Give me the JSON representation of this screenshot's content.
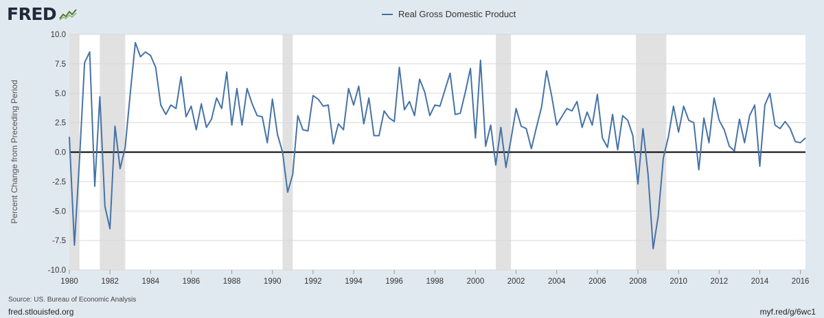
{
  "header": {
    "logo_text": "FRED",
    "logo_icon": "line-chart-icon"
  },
  "colors": {
    "series": "#4572a7",
    "recession": "#e1e1e1",
    "zero_line": "#000000",
    "grid": "#d8d8d8",
    "page_bg": "#e1e9f0",
    "plot_bg": "#ffffff"
  },
  "footer": {
    "source": "Source: US. Bureau of Economic Analysis",
    "site": "fred.stlouisfed.org",
    "short_link": "myf.red/g/6wc1"
  },
  "chart_data": {
    "type": "line",
    "title": "",
    "xlabel": "",
    "ylabel": "Percent Change from Preceding Period",
    "ylim": [
      -10,
      10
    ],
    "xlim": [
      1980,
      2016.25
    ],
    "y_ticks": [
      "10.0",
      "7.5",
      "5.0",
      "2.5",
      "0.0",
      "-2.5",
      "-5.0",
      "-7.5",
      "-10.0"
    ],
    "x_ticks": [
      "1980",
      "1982",
      "1984",
      "1986",
      "1988",
      "1990",
      "1992",
      "1994",
      "1996",
      "1998",
      "2000",
      "2002",
      "2004",
      "2006",
      "2008",
      "2010",
      "2012",
      "2014",
      "2016"
    ],
    "grid": true,
    "legend_position": "top",
    "zero_line": true,
    "recessions": [
      [
        1980.0,
        1980.5
      ],
      [
        1981.5,
        1982.75
      ],
      [
        1990.5,
        1991.0
      ],
      [
        2001.0,
        2001.75
      ],
      [
        2007.9,
        2009.4
      ]
    ],
    "series": [
      {
        "name": "Real Gross Domestic Product",
        "x": [
          1980.0,
          1980.25,
          1980.5,
          1980.75,
          1981.0,
          1981.25,
          1981.5,
          1981.75,
          1982.0,
          1982.25,
          1982.5,
          1982.75,
          1983.0,
          1983.25,
          1983.5,
          1983.75,
          1984.0,
          1984.25,
          1984.5,
          1984.75,
          1985.0,
          1985.25,
          1985.5,
          1985.75,
          1986.0,
          1986.25,
          1986.5,
          1986.75,
          1987.0,
          1987.25,
          1987.5,
          1987.75,
          1988.0,
          1988.25,
          1988.5,
          1988.75,
          1989.0,
          1989.25,
          1989.5,
          1989.75,
          1990.0,
          1990.25,
          1990.5,
          1990.75,
          1991.0,
          1991.25,
          1991.5,
          1991.75,
          1992.0,
          1992.25,
          1992.5,
          1992.75,
          1993.0,
          1993.25,
          1993.5,
          1993.75,
          1994.0,
          1994.25,
          1994.5,
          1994.75,
          1995.0,
          1995.25,
          1995.5,
          1995.75,
          1996.0,
          1996.25,
          1996.5,
          1996.75,
          1997.0,
          1997.25,
          1997.5,
          1997.75,
          1998.0,
          1998.25,
          1998.5,
          1998.75,
          1999.0,
          1999.25,
          1999.5,
          1999.75,
          2000.0,
          2000.25,
          2000.5,
          2000.75,
          2001.0,
          2001.25,
          2001.5,
          2001.75,
          2002.0,
          2002.25,
          2002.5,
          2002.75,
          2003.0,
          2003.25,
          2003.5,
          2003.75,
          2004.0,
          2004.25,
          2004.5,
          2004.75,
          2005.0,
          2005.25,
          2005.5,
          2005.75,
          2006.0,
          2006.25,
          2006.5,
          2006.75,
          2007.0,
          2007.25,
          2007.5,
          2007.75,
          2008.0,
          2008.25,
          2008.5,
          2008.75,
          2009.0,
          2009.25,
          2009.5,
          2009.75,
          2010.0,
          2010.25,
          2010.5,
          2010.75,
          2011.0,
          2011.25,
          2011.5,
          2011.75,
          2012.0,
          2012.25,
          2012.5,
          2012.75,
          2013.0,
          2013.25,
          2013.5,
          2013.75,
          2014.0,
          2014.25,
          2014.5,
          2014.75,
          2015.0,
          2015.25,
          2015.5,
          2015.75,
          2016.0,
          2016.25
        ],
        "values": [
          1.3,
          -7.9,
          -0.6,
          7.6,
          8.5,
          -2.9,
          4.7,
          -4.6,
          -6.5,
          2.2,
          -1.4,
          0.4,
          5.0,
          9.3,
          8.1,
          8.5,
          8.2,
          7.2,
          4.0,
          3.2,
          4.0,
          3.7,
          6.4,
          3.0,
          3.9,
          1.9,
          4.1,
          2.1,
          2.8,
          4.6,
          3.7,
          6.8,
          2.3,
          5.4,
          2.3,
          5.4,
          4.1,
          3.1,
          3.0,
          0.8,
          4.5,
          1.5,
          0.0,
          -3.4,
          -1.9,
          3.1,
          1.9,
          1.8,
          4.8,
          4.5,
          3.9,
          4.0,
          0.7,
          2.4,
          1.9,
          5.4,
          4.0,
          5.6,
          2.4,
          4.6,
          1.4,
          1.4,
          3.5,
          2.9,
          2.6,
          7.2,
          3.6,
          4.3,
          3.1,
          6.2,
          5.1,
          3.1,
          4.0,
          3.9,
          5.3,
          6.7,
          3.2,
          3.3,
          5.1,
          7.1,
          1.2,
          7.8,
          0.5,
          2.3,
          -1.1,
          2.1,
          -1.3,
          1.1,
          3.7,
          2.2,
          2.0,
          0.3,
          2.1,
          3.8,
          6.9,
          4.8,
          2.3,
          3.0,
          3.7,
          3.5,
          4.3,
          2.1,
          3.4,
          2.3,
          4.9,
          1.2,
          0.4,
          3.2,
          0.2,
          3.1,
          2.7,
          1.4,
          -2.7,
          2.0,
          -1.9,
          -8.2,
          -5.4,
          -0.5,
          1.3,
          3.9,
          1.7,
          3.9,
          2.7,
          2.5,
          -1.5,
          2.9,
          0.8,
          4.6,
          2.7,
          1.9,
          0.5,
          0.1,
          2.8,
          0.8,
          3.1,
          4.0,
          -1.2,
          4.0,
          5.0,
          2.3,
          2.0,
          2.6,
          2.0,
          0.9,
          0.8,
          1.2
        ]
      }
    ]
  }
}
